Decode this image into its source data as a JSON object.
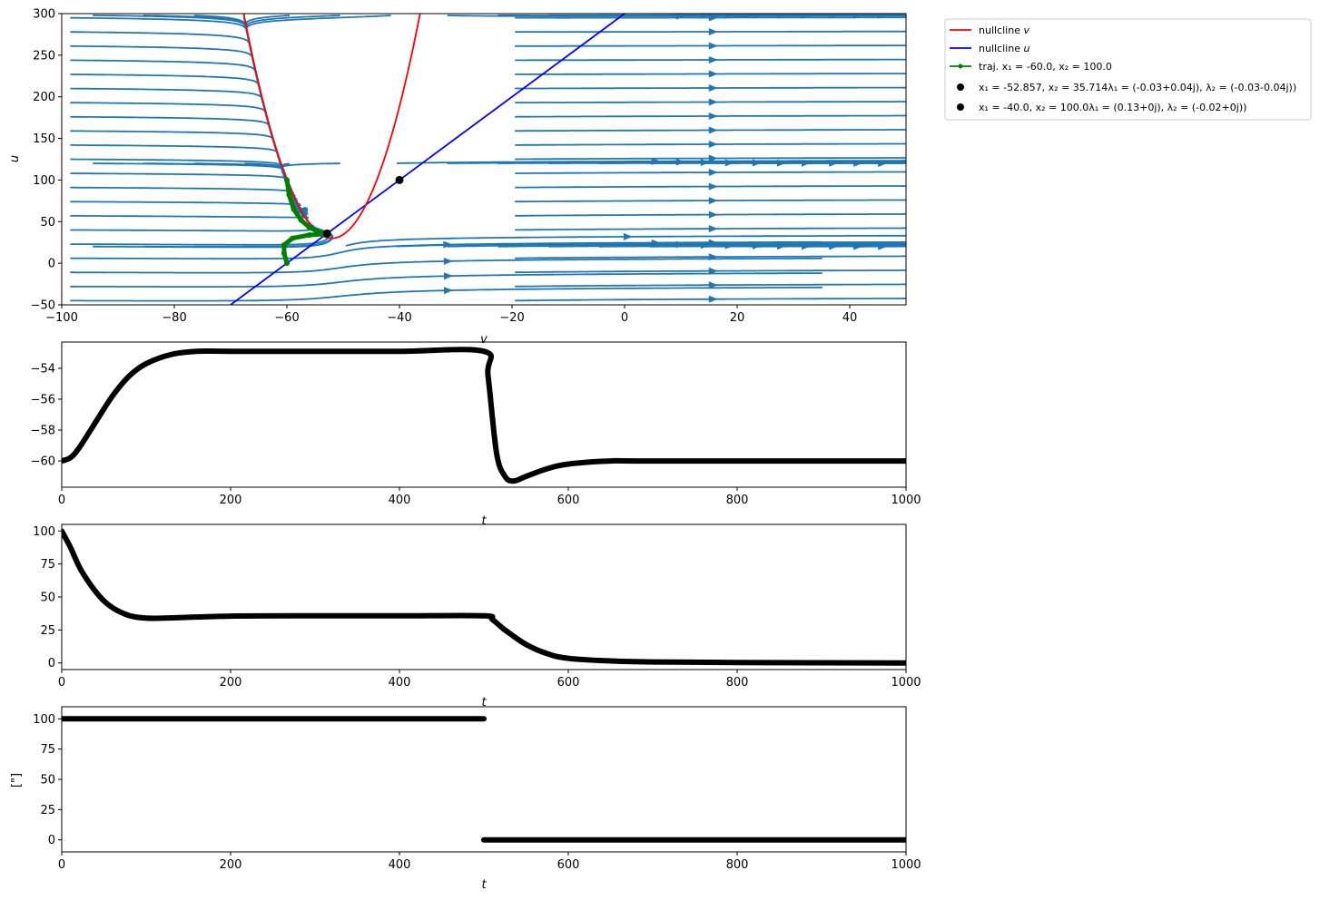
{
  "chart_data": [
    {
      "type": "phase_portrait",
      "xlabel": "v",
      "ylabel": "u",
      "xlim": [
        -100,
        50
      ],
      "ylim": [
        -50,
        300
      ],
      "xticks": [
        -100,
        -80,
        -60,
        -40,
        -20,
        0,
        20,
        40
      ],
      "yticks": [
        -50,
        0,
        50,
        100,
        150,
        200,
        250,
        300
      ],
      "colors": {
        "stream": "#1f77b4",
        "nullcline_v": "#ff0000",
        "nullcline_u": "#0000ff",
        "trajectory": "#008000",
        "fixed_point": "#000000"
      },
      "nullcline_v": {
        "label": "nullcline v",
        "vertex": [
          -52,
          30
        ],
        "curvature": 1.1
      },
      "nullcline_u": {
        "label": "nullcline u",
        "points": [
          [
            -70,
            -50
          ],
          [
            0,
            300
          ]
        ]
      },
      "trajectory": {
        "label": "traj. x1 = -60.0, x2 = 100.0",
        "points": [
          [
            -60,
            100
          ],
          [
            -59.6,
            82
          ],
          [
            -58.8,
            65
          ],
          [
            -57.5,
            52
          ],
          [
            -56,
            43
          ],
          [
            -54.5,
            38
          ],
          [
            -53.5,
            36.5
          ],
          [
            -52.9,
            35.7
          ],
          [
            -53.5,
            35
          ],
          [
            -56,
            34
          ],
          [
            -59,
            30
          ],
          [
            -60.5,
            22
          ],
          [
            -60.5,
            12
          ],
          [
            -60,
            0
          ]
        ]
      },
      "fixed_points": [
        {
          "v": -52.857,
          "u": 35.714,
          "label": "x1 = -52.857, x2 = 35.714λ1 = (-0.03+0.04j), λ2 = (-0.03-0.04j))"
        },
        {
          "v": -40.0,
          "u": 100.0,
          "label": "x1 = -40.0, x2 = 100.0λ1 = (0.13+0j), λ2 = (-0.02+0j))"
        }
      ]
    },
    {
      "type": "line",
      "xlabel": "t",
      "ylabel": "",
      "xlim": [
        0,
        1000
      ],
      "ylim": [
        -61.7,
        -52.3
      ],
      "xticks": [
        0,
        200,
        400,
        600,
        800,
        1000
      ],
      "yticks": [
        -60,
        -58,
        -56,
        -54
      ],
      "series": [
        {
          "x": [
            0,
            10,
            20,
            40,
            60,
            80,
            100,
            130,
            160,
            200,
            300,
            400,
            500,
            505,
            515,
            525,
            535,
            550,
            575,
            600,
            650,
            700,
            1000
          ],
          "y": [
            -60,
            -59.8,
            -59.2,
            -57.5,
            -55.8,
            -54.5,
            -53.7,
            -53.1,
            -52.9,
            -52.9,
            -52.9,
            -52.9,
            -52.9,
            -54.5,
            -59.5,
            -61.0,
            -61.3,
            -61.0,
            -60.5,
            -60.2,
            -60.0,
            -60.0,
            -60.0
          ]
        }
      ]
    },
    {
      "type": "line",
      "xlabel": "t",
      "ylabel": "",
      "xlim": [
        0,
        1000
      ],
      "ylim": [
        -5,
        105
      ],
      "xticks": [
        0,
        200,
        400,
        600,
        800,
        1000
      ],
      "yticks": [
        0,
        25,
        50,
        75,
        100
      ],
      "series": [
        {
          "x": [
            0,
            10,
            25,
            50,
            75,
            100,
            130,
            200,
            300,
            400,
            500,
            510,
            525,
            550,
            575,
            600,
            650,
            700,
            800,
            1000
          ],
          "y": [
            100,
            88,
            68,
            47,
            37,
            34,
            34.2,
            35.5,
            35.7,
            35.7,
            35.7,
            33,
            25,
            14,
            7,
            3.5,
            1.5,
            0.8,
            0.3,
            0
          ]
        }
      ]
    },
    {
      "type": "line",
      "xlabel": "t",
      "ylabel": "[\"]",
      "xlim": [
        0,
        1000
      ],
      "ylim": [
        -10,
        110
      ],
      "xticks": [
        0,
        200,
        400,
        600,
        800,
        1000
      ],
      "yticks": [
        0,
        25,
        50,
        75,
        100
      ],
      "series": [
        {
          "segments": [
            {
              "x": [
                0,
                500
              ],
              "y": [
                100,
                100
              ]
            },
            {
              "x": [
                500,
                1000
              ],
              "y": [
                0,
                0
              ]
            }
          ]
        }
      ]
    }
  ],
  "legend": {
    "entries": [
      {
        "key": "nullcline_v",
        "prefix": "nullcline ",
        "var": "v"
      },
      {
        "key": "nullcline_u",
        "prefix": "nullcline ",
        "var": "u"
      },
      {
        "key": "trajectory",
        "text": "traj. x₁ = -60.0, x₂ = 100.0"
      },
      {
        "key": "fp1",
        "text": "x₁ = -52.857, x₂ = 35.714λ₁ = (-0.03+0.04j), λ₂ = (-0.03-0.04j))"
      },
      {
        "key": "fp2",
        "text": "x₁ = -40.0, x₂ = 100.0λ₁ = (0.13+0j), λ₂ = (-0.02+0j))"
      }
    ]
  }
}
